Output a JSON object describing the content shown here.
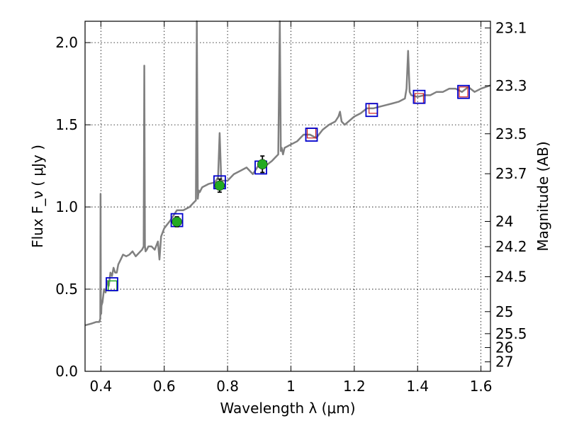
{
  "chart_data": {
    "type": "line",
    "xlabel": "Wavelength  λ (μm)",
    "ylabel": "Flux  F_ν  ( μJy )",
    "y2label": "Magnitude (AB)",
    "xlim": [
      0.35,
      1.63
    ],
    "ylim": [
      0.0,
      2.13
    ],
    "grid": true,
    "x_ticks": [
      0.4,
      0.6,
      0.8,
      1.0,
      1.2,
      1.4,
      1.6
    ],
    "x_tick_labels": [
      "0.4",
      "0.6",
      "0.8",
      "1",
      "1.2",
      "1.4",
      "1.6"
    ],
    "y_ticks": [
      0.0,
      0.5,
      1.0,
      1.5,
      2.0
    ],
    "y_tick_labels": [
      "0.0",
      "0.5",
      "1.0",
      "1.5",
      "2.0"
    ],
    "mag_ticks": [
      23.1,
      23.3,
      23.5,
      23.7,
      24,
      24.2,
      24.5,
      25,
      25.5,
      26,
      27
    ],
    "mag_tick_labels": [
      "23.1",
      "23.3",
      "23.5",
      "23.7",
      "24",
      "24.2",
      "24.5",
      "25",
      "25.5",
      "26",
      "27"
    ],
    "spectrum": {
      "color": "#808080",
      "x": [
        0.35,
        0.37,
        0.385,
        0.395,
        0.398,
        0.399,
        0.4,
        0.401,
        0.402,
        0.405,
        0.41,
        0.415,
        0.42,
        0.425,
        0.43,
        0.435,
        0.44,
        0.445,
        0.45,
        0.455,
        0.46,
        0.47,
        0.48,
        0.49,
        0.5,
        0.51,
        0.52,
        0.53,
        0.535,
        0.537,
        0.539,
        0.541,
        0.545,
        0.55,
        0.56,
        0.57,
        0.58,
        0.585,
        0.59,
        0.6,
        0.62,
        0.64,
        0.66,
        0.68,
        0.69,
        0.7,
        0.703,
        0.706,
        0.709,
        0.712,
        0.72,
        0.74,
        0.76,
        0.77,
        0.775,
        0.78,
        0.8,
        0.82,
        0.84,
        0.86,
        0.88,
        0.9,
        0.92,
        0.94,
        0.95,
        0.96,
        0.965,
        0.968,
        0.971,
        0.975,
        0.98,
        1.0,
        1.02,
        1.04,
        1.06,
        1.08,
        1.1,
        1.12,
        1.14,
        1.15,
        1.155,
        1.16,
        1.17,
        1.2,
        1.22,
        1.24,
        1.26,
        1.28,
        1.3,
        1.32,
        1.34,
        1.36,
        1.365,
        1.37,
        1.375,
        1.38,
        1.4,
        1.42,
        1.44,
        1.46,
        1.48,
        1.5,
        1.52,
        1.54,
        1.56,
        1.58,
        1.6,
        1.63
      ],
      "y": [
        0.28,
        0.29,
        0.3,
        0.3,
        0.32,
        1.08,
        0.45,
        0.35,
        0.4,
        0.42,
        0.5,
        0.48,
        0.55,
        0.52,
        0.6,
        0.58,
        0.63,
        0.6,
        0.6,
        0.65,
        0.67,
        0.71,
        0.7,
        0.71,
        0.73,
        0.7,
        0.72,
        0.74,
        0.76,
        1.86,
        0.76,
        0.73,
        0.74,
        0.76,
        0.76,
        0.74,
        0.79,
        0.68,
        0.82,
        0.87,
        0.92,
        0.98,
        0.98,
        1.0,
        1.02,
        1.04,
        2.13,
        1.05,
        1.1,
        1.09,
        1.12,
        1.14,
        1.15,
        1.18,
        1.45,
        1.16,
        1.16,
        1.2,
        1.22,
        1.24,
        1.2,
        1.26,
        1.25,
        1.28,
        1.3,
        1.32,
        2.13,
        1.34,
        1.36,
        1.32,
        1.36,
        1.38,
        1.4,
        1.44,
        1.44,
        1.42,
        1.47,
        1.5,
        1.52,
        1.55,
        1.58,
        1.52,
        1.5,
        1.55,
        1.57,
        1.6,
        1.6,
        1.61,
        1.62,
        1.63,
        1.64,
        1.66,
        1.72,
        1.95,
        1.7,
        1.68,
        1.67,
        1.68,
        1.68,
        1.7,
        1.7,
        1.72,
        1.72,
        1.7,
        1.73,
        1.7,
        1.72,
        1.74
      ]
    },
    "model_points": {
      "color": "#0000cc",
      "points": [
        {
          "x": 0.435,
          "y": 0.53
        },
        {
          "x": 0.64,
          "y": 0.92
        },
        {
          "x": 0.775,
          "y": 1.15
        },
        {
          "x": 0.905,
          "y": 1.24
        },
        {
          "x": 1.065,
          "y": 1.44
        },
        {
          "x": 1.255,
          "y": 1.59
        },
        {
          "x": 1.405,
          "y": 1.67
        },
        {
          "x": 1.545,
          "y": 1.7
        }
      ]
    },
    "observed_points": {
      "color": "#22aa22",
      "points": [
        {
          "x": 0.64,
          "y": 0.91,
          "err": 0.03
        },
        {
          "x": 0.775,
          "y": 1.13,
          "err": 0.04
        },
        {
          "x": 0.91,
          "y": 1.26,
          "err": 0.05
        }
      ]
    },
    "upper_markers": {
      "color": "#cc2222",
      "points": [
        {
          "x": 1.065,
          "y": 1.45
        },
        {
          "x": 1.26,
          "y": 1.6
        },
        {
          "x": 1.405,
          "y": 1.66
        },
        {
          "x": 1.545,
          "y": 1.7
        }
      ]
    },
    "green_open_marker": {
      "x": 0.437,
      "y": 0.52,
      "color": "#22aa22"
    }
  }
}
